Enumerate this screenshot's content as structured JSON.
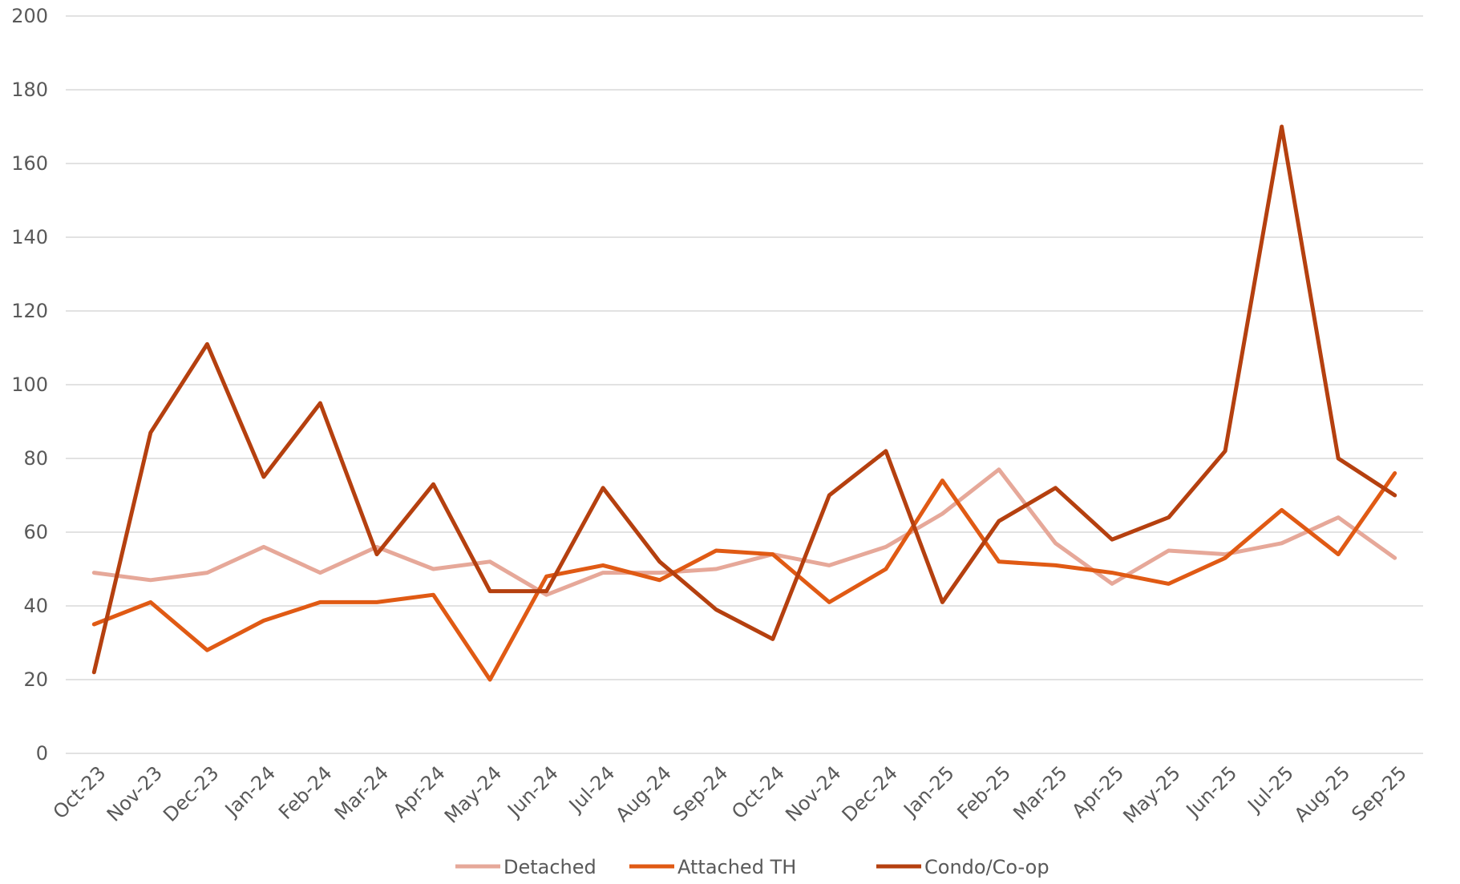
{
  "chart_data": {
    "type": "line",
    "categories": [
      "Oct-23",
      "Nov-23",
      "Dec-23",
      "Jan-24",
      "Feb-24",
      "Mar-24",
      "Apr-24",
      "May-24",
      "Jun-24",
      "Jul-24",
      "Aug-24",
      "Sep-24",
      "Oct-24",
      "Nov-24",
      "Dec-24",
      "Jan-25",
      "Feb-25",
      "Mar-25",
      "Apr-25",
      "May-25",
      "Jun-25",
      "Jul-25",
      "Aug-25",
      "Sep-25"
    ],
    "series": [
      {
        "name": "Detached",
        "color": "#e6a899",
        "values": [
          49,
          47,
          49,
          56,
          49,
          56,
          50,
          52,
          43,
          49,
          49,
          50,
          54,
          51,
          56,
          65,
          77,
          57,
          46,
          55,
          54,
          57,
          64,
          53
        ]
      },
      {
        "name": "Attached TH",
        "color": "#e05a14",
        "values": [
          35,
          41,
          28,
          36,
          41,
          41,
          43,
          20,
          48,
          51,
          47,
          55,
          54,
          41,
          50,
          74,
          52,
          51,
          49,
          46,
          53,
          66,
          54,
          76
        ]
      },
      {
        "name": "Condo/Co-op",
        "color": "#b5400f",
        "values": [
          22,
          87,
          111,
          75,
          95,
          54,
          73,
          44,
          44,
          72,
          52,
          39,
          31,
          70,
          82,
          41,
          63,
          72,
          58,
          64,
          82,
          170,
          80,
          70
        ]
      }
    ],
    "yticks": [
      "0",
      "20",
      "40",
      "60",
      "80",
      "100",
      "120",
      "140",
      "160",
      "180",
      "200"
    ],
    "ylim": [
      0,
      200
    ],
    "grid": true,
    "legend_position": "bottom",
    "title": "",
    "xlabel": "",
    "ylabel": ""
  }
}
